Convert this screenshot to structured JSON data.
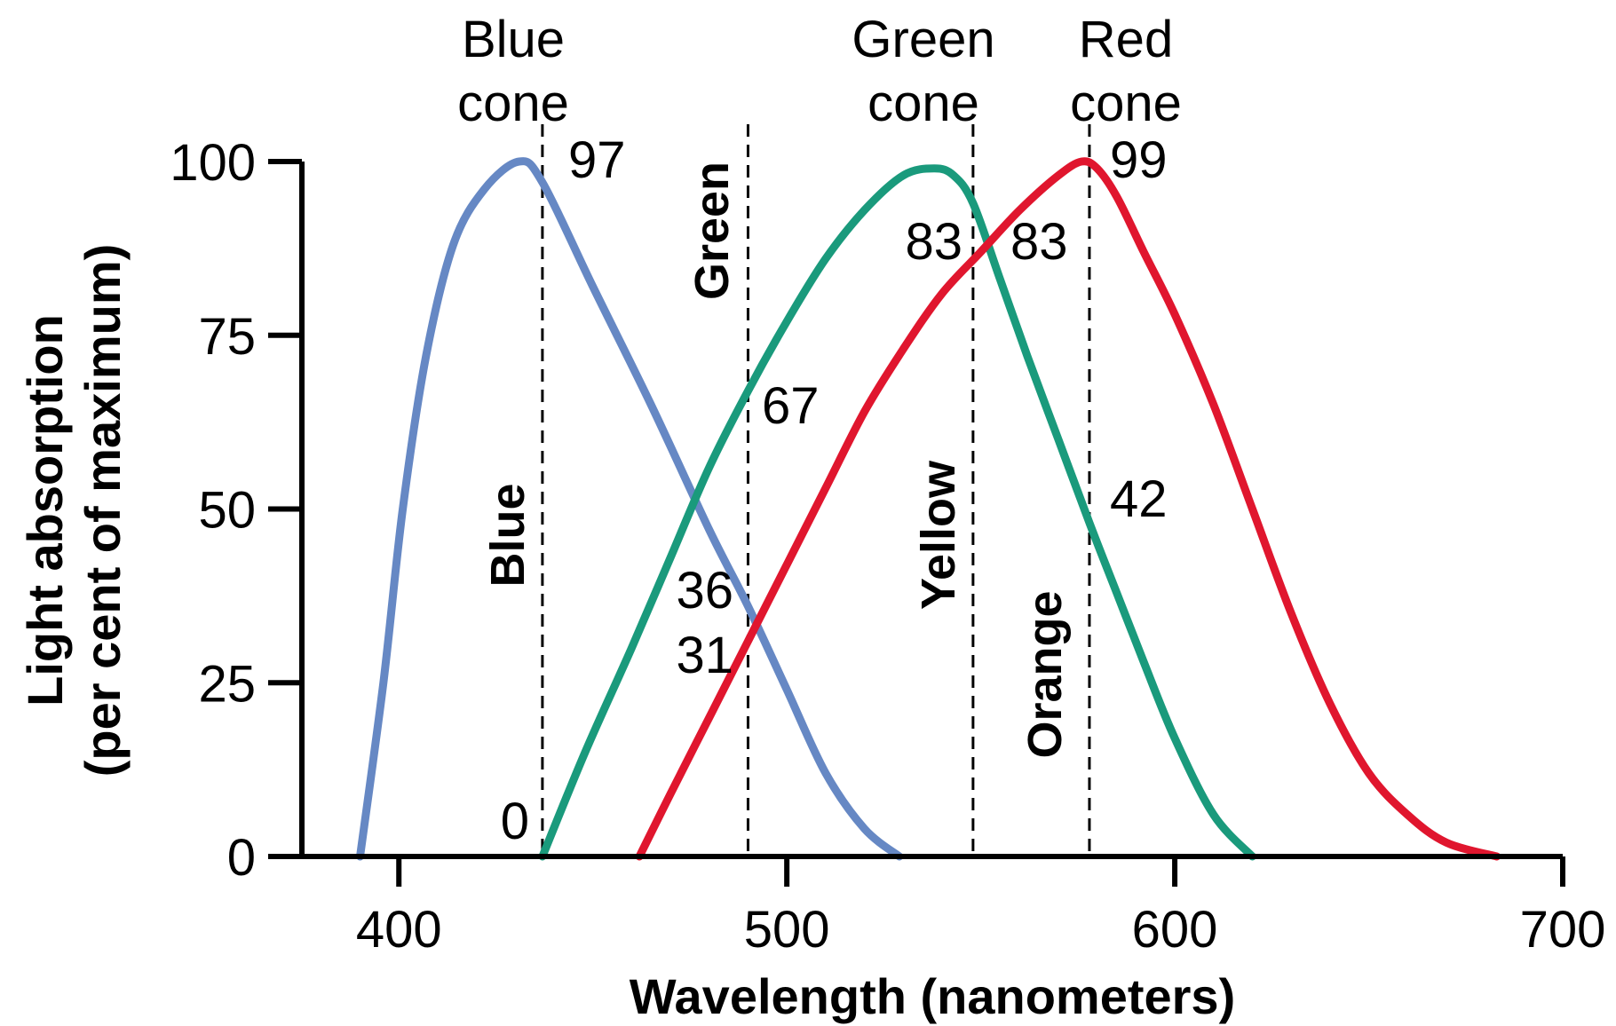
{
  "chart_data": {
    "type": "line",
    "xlabel": "Wavelength (nanometers)",
    "ylabel_line1": "Light absorption",
    "ylabel_line2": "(per cent of maximum)",
    "xlim": [
      375,
      700
    ],
    "ylim": [
      0,
      100
    ],
    "x_ticks": [
      400,
      500,
      600,
      700
    ],
    "y_ticks": [
      0,
      25,
      50,
      75,
      100
    ],
    "series": [
      {
        "id": "blue",
        "name_line1": "Blue",
        "name_line2": "cone",
        "color": "#6688C4",
        "points": [
          [
            390,
            0
          ],
          [
            396,
            25
          ],
          [
            401,
            50
          ],
          [
            407,
            72
          ],
          [
            414,
            88
          ],
          [
            422,
            96
          ],
          [
            431,
            100
          ],
          [
            437,
            97
          ],
          [
            450,
            82
          ],
          [
            465,
            65
          ],
          [
            480,
            47
          ],
          [
            490,
            36
          ],
          [
            500,
            24
          ],
          [
            510,
            12
          ],
          [
            520,
            4
          ],
          [
            529,
            0
          ]
        ]
      },
      {
        "id": "green",
        "name_line1": "Green",
        "name_line2": "cone",
        "color": "#1A9A7C",
        "points": [
          [
            437,
            0
          ],
          [
            448,
            15
          ],
          [
            460,
            30
          ],
          [
            470,
            43
          ],
          [
            480,
            56
          ],
          [
            490,
            67
          ],
          [
            500,
            77
          ],
          [
            510,
            86
          ],
          [
            520,
            93
          ],
          [
            530,
            98
          ],
          [
            538,
            99
          ],
          [
            543,
            98
          ],
          [
            548,
            94
          ],
          [
            555,
            83
          ],
          [
            562,
            72
          ],
          [
            570,
            60
          ],
          [
            578,
            48
          ],
          [
            585,
            38
          ],
          [
            592,
            28
          ],
          [
            600,
            17
          ],
          [
            610,
            6
          ],
          [
            620,
            0
          ]
        ]
      },
      {
        "id": "red",
        "name_line1": "Red",
        "name_line2": "cone",
        "color": "#E0162E",
        "points": [
          [
            462,
            0
          ],
          [
            470,
            9
          ],
          [
            480,
            20
          ],
          [
            490,
            31
          ],
          [
            500,
            42
          ],
          [
            510,
            53
          ],
          [
            520,
            64
          ],
          [
            530,
            73
          ],
          [
            540,
            81
          ],
          [
            550,
            87
          ],
          [
            560,
            93
          ],
          [
            570,
            98
          ],
          [
            576,
            100
          ],
          [
            580,
            99
          ],
          [
            585,
            95
          ],
          [
            592,
            87
          ],
          [
            600,
            78
          ],
          [
            610,
            65
          ],
          [
            620,
            50
          ],
          [
            630,
            35
          ],
          [
            640,
            22
          ],
          [
            650,
            12
          ],
          [
            660,
            6
          ],
          [
            670,
            2
          ],
          [
            683,
            0
          ]
        ]
      }
    ],
    "reference_lines": [
      437,
      490,
      548,
      578
    ],
    "value_annotations": [
      "97",
      "67",
      "36",
      "31",
      "0",
      "83",
      "83",
      "99",
      "42"
    ],
    "region_labels": [
      "Blue",
      "Green",
      "Yellow",
      "Orange"
    ]
  }
}
